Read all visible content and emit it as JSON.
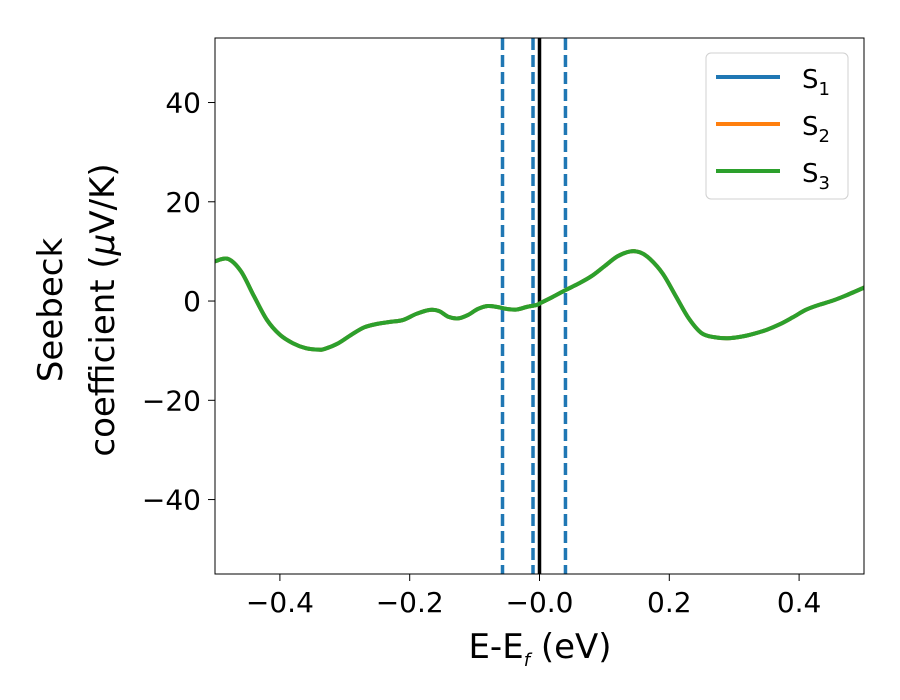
{
  "chart_data": {
    "type": "line",
    "xlabel": {
      "base": "E-E",
      "sub": "f",
      "tail": " (eV)"
    },
    "ylabel": {
      "line1": "Seebeck",
      "line2a": "coefficient  (",
      "mu": "μ",
      "line2b": "V/K)"
    },
    "xlim": [
      -0.5,
      0.5
    ],
    "ylim": [
      -55,
      53
    ],
    "xticks": [
      -0.4,
      -0.2,
      0.0,
      0.2,
      0.4
    ],
    "xtick_labels": [
      "−0.4",
      "−0.2",
      "−0.0",
      "0.2",
      "0.4"
    ],
    "yticks": [
      -40,
      -20,
      0,
      20,
      40
    ],
    "ytick_labels": [
      "−40",
      "−20",
      "0",
      "20",
      "40"
    ],
    "legend_position": "top-right",
    "series": [
      {
        "key": "s1",
        "name": {
          "base": "S",
          "sub": "1"
        },
        "color": "#1f77b4"
      },
      {
        "key": "s2",
        "name": {
          "base": "S",
          "sub": "2"
        },
        "color": "#ff7f0e"
      },
      {
        "key": "s3",
        "name": {
          "base": "S",
          "sub": "3"
        },
        "color": "#2ca02c"
      }
    ],
    "x": [
      -0.5,
      -0.48,
      -0.46,
      -0.44,
      -0.42,
      -0.4,
      -0.38,
      -0.36,
      -0.34,
      -0.33,
      -0.31,
      -0.29,
      -0.27,
      -0.25,
      -0.23,
      -0.21,
      -0.19,
      -0.17,
      -0.155,
      -0.14,
      -0.125,
      -0.11,
      -0.095,
      -0.08,
      -0.065,
      -0.05,
      -0.035,
      -0.02,
      -0.005,
      0.0,
      0.02,
      0.04,
      0.06,
      0.08,
      0.1,
      0.12,
      0.14,
      0.155,
      0.17,
      0.19,
      0.21,
      0.23,
      0.25,
      0.27,
      0.29,
      0.31,
      0.33,
      0.35,
      0.37,
      0.39,
      0.41,
      0.43,
      0.45,
      0.47,
      0.5
    ],
    "y": [
      8.0,
      8.5,
      6.0,
      1.0,
      -3.8,
      -6.8,
      -8.5,
      -9.5,
      -9.8,
      -9.6,
      -8.5,
      -6.8,
      -5.3,
      -4.6,
      -4.2,
      -3.8,
      -2.6,
      -1.8,
      -2.0,
      -3.2,
      -3.5,
      -2.8,
      -1.6,
      -1.0,
      -1.2,
      -1.6,
      -1.7,
      -1.2,
      -0.8,
      -0.5,
      0.8,
      2.2,
      3.5,
      5.0,
      7.0,
      9.0,
      10.0,
      9.8,
      8.5,
      5.5,
      1.0,
      -3.5,
      -6.5,
      -7.3,
      -7.5,
      -7.2,
      -6.6,
      -5.8,
      -4.7,
      -3.3,
      -1.8,
      -0.8,
      0.0,
      1.0,
      2.7
    ],
    "reference_lines": [
      {
        "x": -0.057,
        "style": "dashed",
        "color": "#1f77b4"
      },
      {
        "x": -0.01,
        "style": "dashed",
        "color": "#1f77b4"
      },
      {
        "x": 0.04,
        "style": "dashed",
        "color": "#1f77b4"
      },
      {
        "x": 0.0,
        "style": "solid",
        "color": "#000000"
      }
    ]
  }
}
